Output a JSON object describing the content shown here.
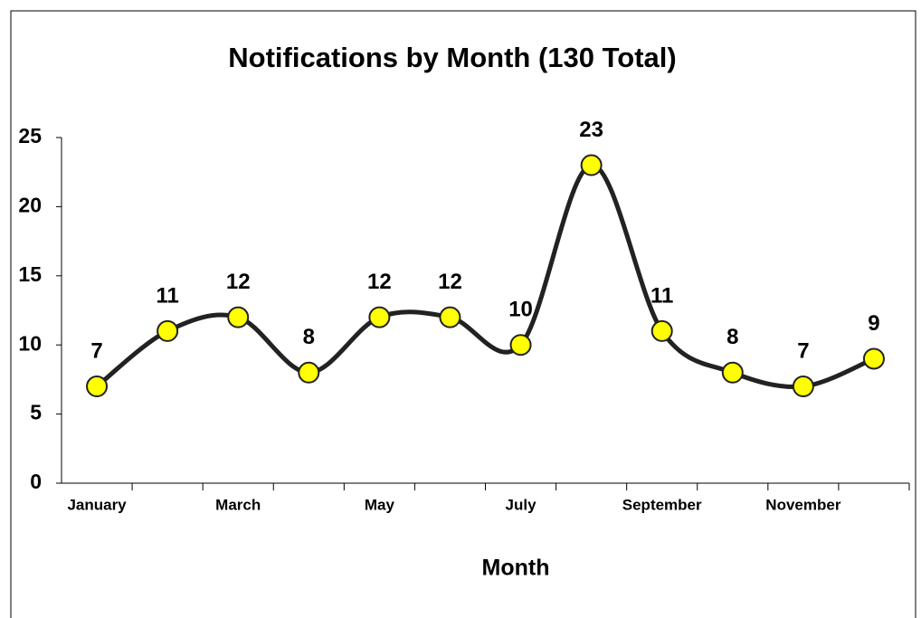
{
  "chart_data": {
    "type": "line",
    "title": "Notifications by Month (130 Total)",
    "x_label": "Month",
    "categories": [
      "January",
      null,
      "March",
      null,
      "May",
      null,
      "July",
      null,
      "September",
      null,
      "November",
      null
    ],
    "values": [
      7,
      11,
      12,
      8,
      12,
      12,
      10,
      23,
      11,
      8,
      7,
      9
    ],
    "color": "#222222",
    "marker_color": "#ffff00",
    "smooth": true,
    "ylim": [
      0,
      25
    ],
    "yticks": [
      0,
      5,
      10,
      15,
      20,
      25
    ],
    "grid": false
  }
}
